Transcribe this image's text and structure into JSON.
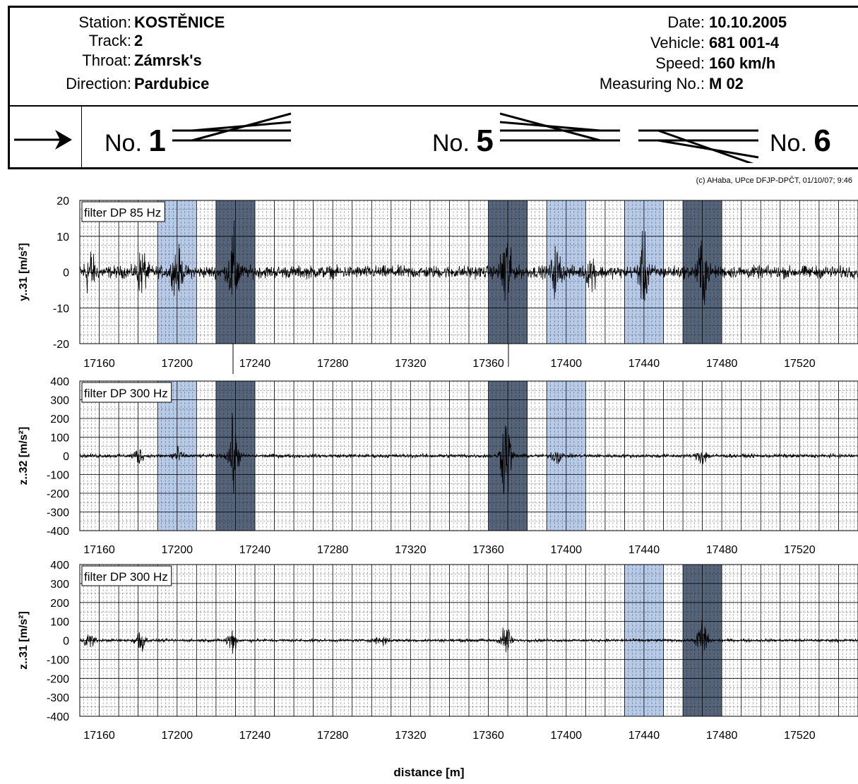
{
  "header": {
    "station_label": "Station:",
    "station": "KOSTĚNICE",
    "track_label": "Track:",
    "track": "2",
    "throat_label": "Throat:",
    "throat": "Zámrsk's",
    "direction_label": "Direction:",
    "direction": "Pardubice",
    "date_label": "Date:",
    "date": "10.10.2005",
    "vehicle_label": "Vehicle:",
    "vehicle": "681 001-4",
    "speed_label": "Speed:",
    "speed": "160 km/h",
    "measuring_label": "Measuring No.:",
    "measuring": "M 02"
  },
  "switches": [
    {
      "prefix": "No.",
      "number": "1"
    },
    {
      "prefix": "No.",
      "number": "5"
    },
    {
      "prefix": "No.",
      "number": "6"
    }
  ],
  "copyright": "(c) AHaba, UPce DFJP-DPČT, 01/10/07; 9:46",
  "xlabel": "distance [m]",
  "colors": {
    "light_band": "#b7cbe8",
    "dark_band": "#56647a",
    "signal": "#000000"
  },
  "chart_data": [
    {
      "type": "line",
      "ylabel": "y..31 [m/s²]",
      "filter": "filter DP 85 Hz",
      "xlim": [
        17150,
        17550
      ],
      "ylim": [
        -20,
        20
      ],
      "yticks": [
        20,
        10,
        0,
        -10,
        -20
      ],
      "xticks": [
        17160,
        17200,
        17240,
        17280,
        17320,
        17360,
        17400,
        17440,
        17480,
        17520
      ],
      "bands": [
        {
          "x": [
            17190,
            17210
          ],
          "shade": "light"
        },
        {
          "x": [
            17220,
            17240
          ],
          "shade": "dark"
        },
        {
          "x": [
            17360,
            17380
          ],
          "shade": "dark"
        },
        {
          "x": [
            17390,
            17410
          ],
          "shade": "light"
        },
        {
          "x": [
            17430,
            17450
          ],
          "shade": "light"
        },
        {
          "x": [
            17460,
            17480
          ],
          "shade": "dark"
        }
      ],
      "noise": 2.5,
      "bursts": [
        {
          "x": 17155,
          "amp": 9
        },
        {
          "x": 17182,
          "amp": 8
        },
        {
          "x": 17200,
          "amp": 9
        },
        {
          "x": 17229,
          "amp": 16
        },
        {
          "x": 17369,
          "amp": 18
        },
        {
          "x": 17395,
          "amp": 9
        },
        {
          "x": 17413,
          "amp": 6
        },
        {
          "x": 17440,
          "amp": 13
        },
        {
          "x": 17470,
          "amp": 14
        }
      ]
    },
    {
      "type": "line",
      "ylabel": "z..32 [m/s²]",
      "filter": "filter DP 300 Hz",
      "xlim": [
        17150,
        17550
      ],
      "ylim": [
        -400,
        400
      ],
      "yticks": [
        400,
        300,
        200,
        100,
        0,
        -100,
        -200,
        -300,
        -400
      ],
      "xticks": [
        17160,
        17200,
        17240,
        17280,
        17320,
        17360,
        17400,
        17440,
        17480,
        17520
      ],
      "bands": [
        {
          "x": [
            17190,
            17210
          ],
          "shade": "light"
        },
        {
          "x": [
            17220,
            17240
          ],
          "shade": "dark"
        },
        {
          "x": [
            17360,
            17380
          ],
          "shade": "dark"
        },
        {
          "x": [
            17390,
            17410
          ],
          "shade": "light"
        }
      ],
      "noise": 15,
      "bursts": [
        {
          "x": 17180,
          "amp": 60
        },
        {
          "x": 17200,
          "amp": 60
        },
        {
          "x": 17229,
          "amp": 280
        },
        {
          "x": 17369,
          "amp": 370
        },
        {
          "x": 17395,
          "amp": 60
        },
        {
          "x": 17470,
          "amp": 70
        }
      ]
    },
    {
      "type": "line",
      "ylabel": "z..31 [m/s²]",
      "filter": "filter DP 300 Hz",
      "xlim": [
        17150,
        17550
      ],
      "ylim": [
        -400,
        400
      ],
      "yticks": [
        400,
        300,
        200,
        100,
        0,
        -100,
        -200,
        -300,
        -400
      ],
      "xticks": [
        17160,
        17200,
        17240,
        17280,
        17320,
        17360,
        17400,
        17440,
        17480,
        17520
      ],
      "bands": [
        {
          "x": [
            17430,
            17450
          ],
          "shade": "light"
        },
        {
          "x": [
            17460,
            17480
          ],
          "shade": "dark"
        }
      ],
      "noise": 12,
      "bursts": [
        {
          "x": 17155,
          "amp": 60
        },
        {
          "x": 17181,
          "amp": 100
        },
        {
          "x": 17228,
          "amp": 90
        },
        {
          "x": 17305,
          "amp": 50
        },
        {
          "x": 17369,
          "amp": 120
        },
        {
          "x": 17470,
          "amp": 180
        }
      ]
    }
  ]
}
